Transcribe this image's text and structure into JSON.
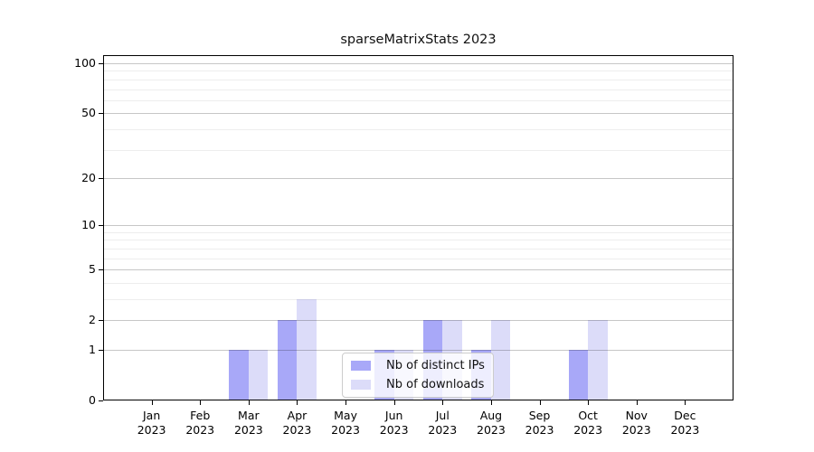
{
  "figure": {
    "title": "sparseMatrixStats 2023"
  },
  "chart_data": {
    "type": "bar",
    "title": "sparseMatrixStats 2023",
    "xlabel": "",
    "ylabel": "",
    "categories": [
      "Jan 2023",
      "Feb 2023",
      "Mar 2023",
      "Apr 2023",
      "May 2023",
      "Jun 2023",
      "Jul 2023",
      "Aug 2023",
      "Sep 2023",
      "Oct 2023",
      "Nov 2023",
      "Dec 2023"
    ],
    "series": [
      {
        "name": "Nb of distinct IPs",
        "color": "#a8a8f8",
        "values": [
          0,
          0,
          1,
          2,
          0,
          1,
          2,
          1,
          0,
          1,
          0,
          0
        ]
      },
      {
        "name": "Nb of downloads",
        "color": "#dcdcf9",
        "values": [
          0,
          0,
          1,
          3,
          0,
          1,
          2,
          2,
          0,
          2,
          0,
          0
        ]
      }
    ],
    "yscale": "log1p",
    "yticks": [
      0,
      1,
      2,
      5,
      10,
      20,
      50,
      100
    ],
    "minor_gridlines": [
      3,
      4,
      6,
      7,
      8,
      9,
      30,
      40,
      60,
      70,
      80,
      90
    ],
    "ylim": [
      0,
      112
    ],
    "grid": true,
    "legend": {
      "entries": [
        "Nb of distinct IPs",
        "Nb of downloads"
      ],
      "location": "lower center, inside plot"
    }
  }
}
